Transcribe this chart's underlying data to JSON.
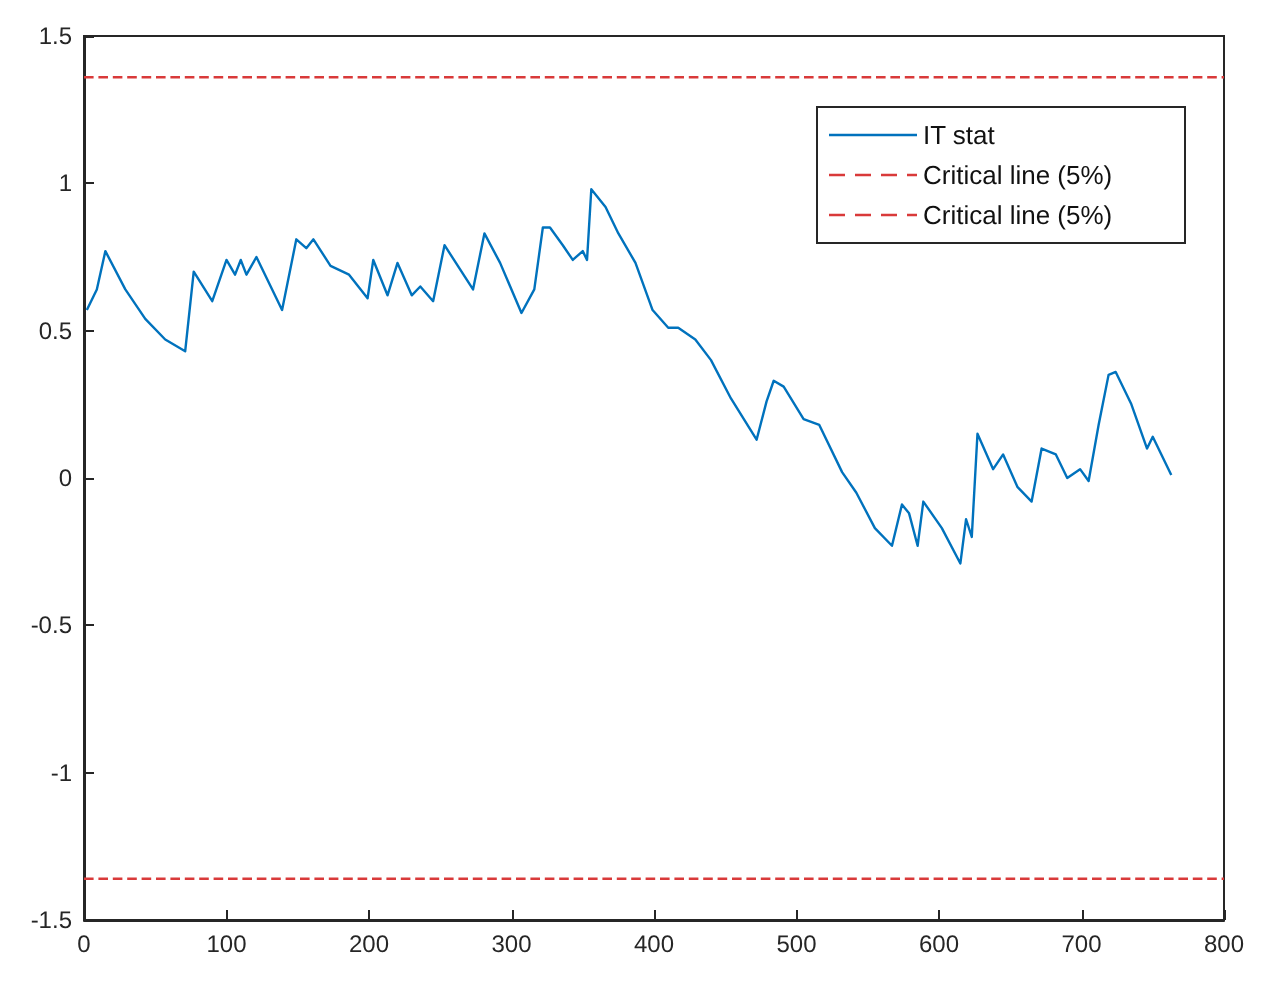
{
  "chart_data": {
    "type": "line",
    "xlim": [
      0,
      800
    ],
    "xticks": [
      0,
      100,
      200,
      300,
      400,
      500,
      600,
      700,
      800
    ],
    "ylim": [
      -1.5,
      1.5
    ],
    "yticks": [
      -1.5,
      -1,
      -0.5,
      0,
      0.5,
      1,
      1.5
    ],
    "grid": false,
    "legend": "top right",
    "line_style": "solid",
    "marker": "none",
    "series": [
      {
        "name": "IT stat",
        "color": "#0072bd",
        "x": [
          2,
          9,
          15,
          29,
          43,
          57,
          71,
          77,
          90,
          100,
          106,
          110,
          114,
          121,
          139,
          149,
          156,
          161,
          173,
          186,
          199,
          203,
          213,
          220,
          230,
          236,
          245,
          253,
          273,
          281,
          292,
          307,
          316,
          322,
          327,
          336,
          343,
          350,
          353,
          356,
          366,
          375,
          387,
          399,
          410,
          417,
          429,
          440,
          454,
          472,
          479,
          484,
          491,
          505,
          516,
          532,
          542,
          555,
          567,
          574,
          579,
          585,
          589,
          602,
          615,
          619,
          623,
          627,
          638,
          645,
          655,
          665,
          672,
          682,
          690,
          699,
          705,
          712,
          719,
          724,
          735,
          746,
          750,
          763
        ],
        "values": [
          0.57,
          0.64,
          0.77,
          0.64,
          0.54,
          0.47,
          0.43,
          0.7,
          0.6,
          0.74,
          0.69,
          0.74,
          0.69,
          0.75,
          0.57,
          0.81,
          0.78,
          0.81,
          0.72,
          0.69,
          0.61,
          0.74,
          0.62,
          0.73,
          0.62,
          0.65,
          0.6,
          0.79,
          0.64,
          0.83,
          0.73,
          0.56,
          0.64,
          0.85,
          0.85,
          0.79,
          0.74,
          0.77,
          0.74,
          0.98,
          0.92,
          0.83,
          0.73,
          0.57,
          0.51,
          0.51,
          0.47,
          0.4,
          0.27,
          0.13,
          0.26,
          0.33,
          0.31,
          0.2,
          0.18,
          0.02,
          -0.05,
          -0.17,
          -0.23,
          -0.09,
          -0.12,
          -0.23,
          -0.08,
          -0.17,
          -0.29,
          -0.14,
          -0.2,
          0.15,
          0.03,
          0.08,
          -0.03,
          -0.08,
          0.1,
          0.08,
          0,
          0.03,
          -0.01,
          0.18,
          0.35,
          0.36,
          0.25,
          0.1,
          0.14,
          0.01
        ]
      },
      {
        "name": "Critical line (5%)",
        "color": "#d93a3a",
        "line_style": "dashed",
        "x": [
          0,
          800
        ],
        "values": [
          1.36,
          1.36
        ]
      },
      {
        "name": "Critical line (5%)",
        "color": "#d93a3a",
        "line_style": "dashed",
        "x": [
          0,
          800
        ],
        "values": [
          -1.36,
          -1.36
        ]
      }
    ]
  }
}
